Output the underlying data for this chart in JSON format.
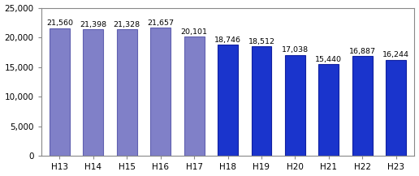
{
  "categories": [
    "H13",
    "H14",
    "H15",
    "H16",
    "H17",
    "H18",
    "H19",
    "H20",
    "H21",
    "H22",
    "H23"
  ],
  "values": [
    21560,
    21398,
    21328,
    21657,
    20101,
    18746,
    18512,
    17038,
    15440,
    16887,
    16244
  ],
  "bar_colors_light": "#8080c8",
  "bar_colors_dark": "#1a34cc",
  "bar_edge_color": "#6060b0",
  "bar_edge_color_dark": "#1020a0",
  "light_count": 5,
  "ylim": [
    0,
    25000
  ],
  "yticks": [
    0,
    5000,
    10000,
    15000,
    20000,
    25000
  ],
  "background_color": "#ffffff",
  "plot_bg_color": "#ffffff",
  "label_fontsize": 6.8,
  "tick_fontsize": 7.5,
  "label_color": "#000000",
  "bar_width": 0.6,
  "spine_color": "#888888",
  "box_visible": true
}
